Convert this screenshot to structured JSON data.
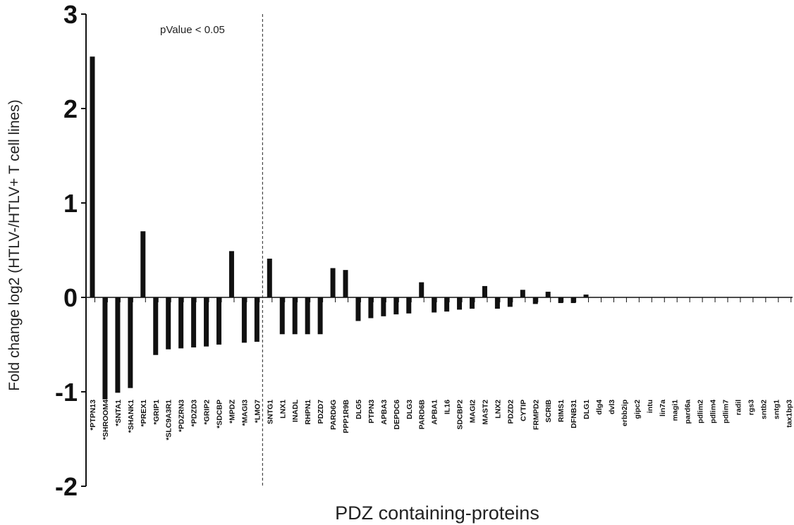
{
  "chart_data": {
    "type": "bar",
    "xlabel": "PDZ containing-proteins",
    "ylabel": "Fold change log2 (HTLV-/HTLV+ T cell lines)",
    "ylim": [
      -2,
      3
    ],
    "yticks": [
      3,
      2,
      1,
      0,
      -1,
      -2
    ],
    "ytick_labels": [
      "3",
      "2",
      "1",
      "0",
      "-1",
      "-2"
    ],
    "annotation": "pValue < 0.05",
    "significance_split_after": "*LMO7",
    "categories": [
      "*PTPN13",
      "*SHROOM4",
      "*SNTA1",
      "*SHANK1",
      "*PREX1",
      "*GRIP1",
      "*SLC9A3R1",
      "*PDZRN3",
      "*PDZD3",
      "*GRIP2",
      "*SDCBP",
      "*MPDZ",
      "*MAGI3",
      "*LMO7",
      "SNTG1",
      "LNX1",
      "INADL",
      "RHPN1",
      "PDZD7",
      "PARD6G",
      "PPP1R9B",
      "DLG5",
      "PTPN3",
      "APBA3",
      "DEPDC6",
      "DLG3",
      "PARD6B",
      "APBA1",
      "IL16",
      "SDCBP2",
      "MAGI2",
      "MAST2",
      "LNX2",
      "PDZD2",
      "CYTIP",
      "FRMPD2",
      "SCRIB",
      "RIMS1",
      "DFNB31",
      "DLG1",
      "dlg4",
      "dvl3",
      "erbb2ip",
      "gipc2",
      "intu",
      "lin7a",
      "magi1",
      "pard6a",
      "pdlim2",
      "pdlim4",
      "pdlim7",
      "radil",
      "rgs3",
      "sntb2",
      "sntg1",
      "tax1bp3"
    ],
    "values": [
      2.55,
      -1.08,
      -1.01,
      -0.96,
      0.7,
      -0.61,
      -0.55,
      -0.54,
      -0.53,
      -0.52,
      -0.5,
      0.49,
      -0.48,
      -0.47,
      0.41,
      -0.39,
      -0.39,
      -0.39,
      -0.39,
      0.31,
      0.29,
      -0.25,
      -0.22,
      -0.2,
      -0.18,
      -0.17,
      0.16,
      -0.16,
      -0.15,
      -0.13,
      -0.12,
      0.12,
      -0.12,
      -0.1,
      0.08,
      -0.07,
      0.06,
      -0.06,
      -0.06,
      0.03,
      0,
      0,
      0,
      0,
      0,
      0,
      0,
      0,
      0,
      0,
      0,
      0,
      0,
      0,
      0,
      0
    ]
  }
}
